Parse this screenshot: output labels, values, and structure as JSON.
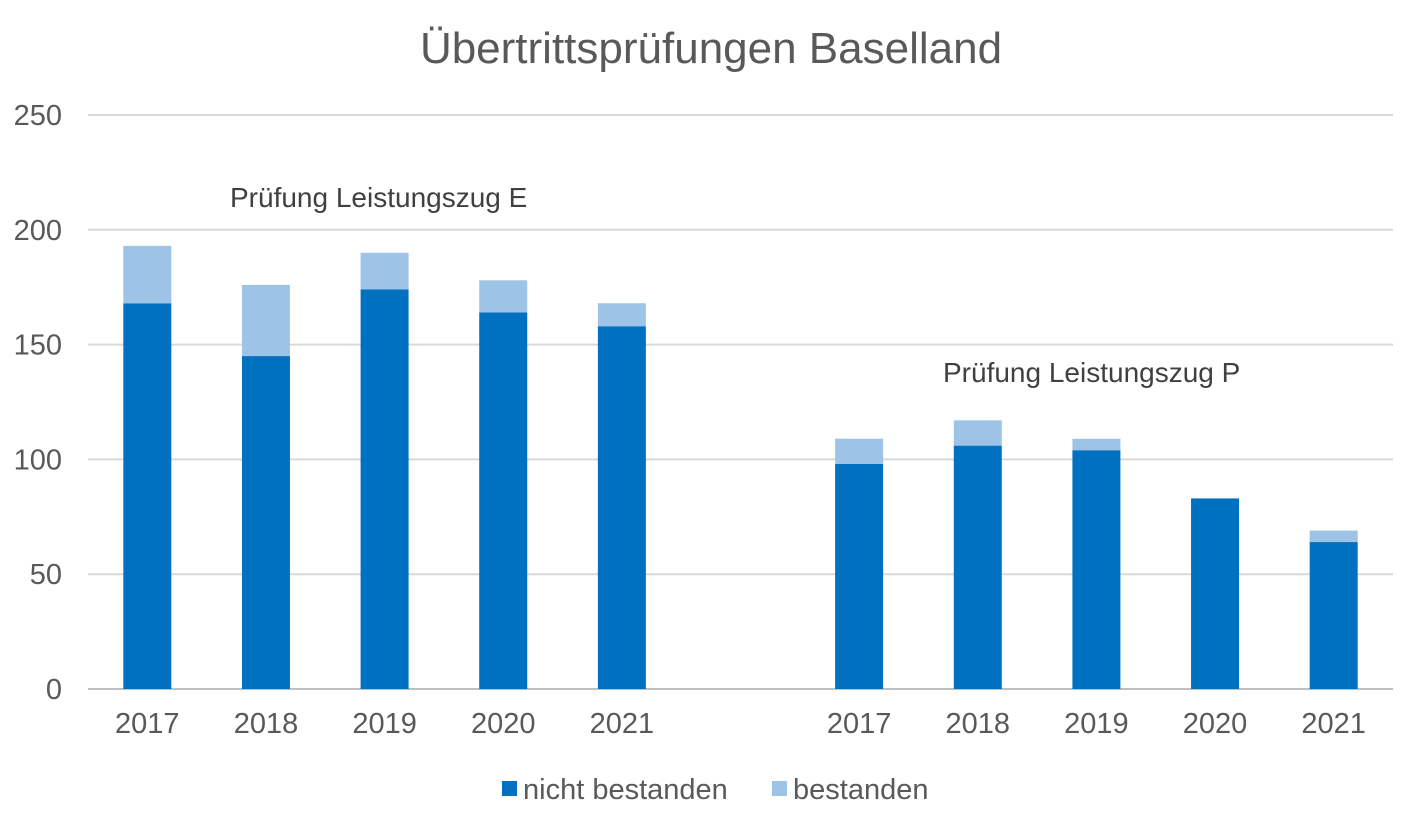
{
  "chart_data": {
    "type": "bar",
    "stacked": true,
    "title": "Übertrittsprüfungen Baselland",
    "xlabel": "",
    "ylabel": "",
    "ylim": [
      0,
      250
    ],
    "y_ticks": [
      "0",
      "50",
      "100",
      "150",
      "200",
      "250"
    ],
    "grid": true,
    "legend_position": "bottom",
    "colors": {
      "nicht_bestanden": "#0070C0",
      "bestanden": "#9DC3E6",
      "grid": "#D9D9D9",
      "axis": "#BFBFBF",
      "text": "#595959"
    },
    "groups": [
      {
        "label": "Prüfung Leistungszug E",
        "categories": [
          "2017",
          "2018",
          "2019",
          "2020",
          "2021"
        ],
        "series": [
          {
            "name": "nicht bestanden",
            "values": [
              168,
              145,
              174,
              164,
              158
            ]
          },
          {
            "name": "bestanden",
            "values": [
              25,
              31,
              16,
              14,
              10
            ]
          }
        ]
      },
      {
        "label": "Prüfung Leistungszug P",
        "categories": [
          "2017",
          "2018",
          "2019",
          "2020",
          "2021"
        ],
        "series": [
          {
            "name": "nicht bestanden",
            "values": [
              98,
              106,
              104,
              83,
              64
            ]
          },
          {
            "name": "bestanden",
            "values": [
              11,
              11,
              5,
              0,
              5
            ]
          }
        ]
      }
    ],
    "legend": [
      "nicht bestanden",
      "bestanden"
    ]
  }
}
